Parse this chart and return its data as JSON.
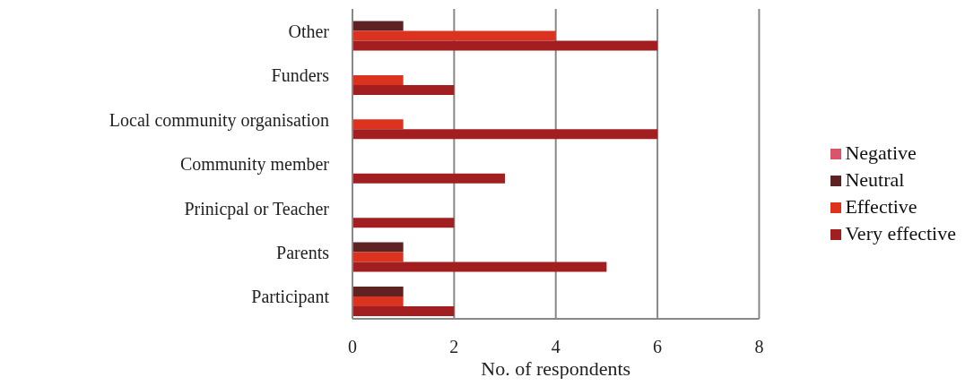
{
  "chart_data": {
    "type": "bar",
    "orientation": "horizontal",
    "xlabel": "No. of respondents",
    "categories": [
      "Other",
      "Funders",
      "Local community organisation",
      "Community member",
      "Prinicpal or Teacher",
      "Parents",
      "Participant"
    ],
    "series": [
      {
        "name": "Negative",
        "color": "#dc546c",
        "values": [
          0,
          0,
          0,
          0,
          0,
          0,
          0
        ]
      },
      {
        "name": "Neutral",
        "color": "#5e2222",
        "values": [
          1,
          0,
          0,
          0,
          0,
          1,
          1
        ]
      },
      {
        "name": "Effective",
        "color": "#dc3220",
        "values": [
          4,
          1,
          1,
          0,
          0,
          1,
          1
        ]
      },
      {
        "name": "Very effective",
        "color": "#a21e21",
        "values": [
          6,
          2,
          6,
          3,
          2,
          5,
          2
        ]
      }
    ],
    "xlim": [
      0,
      8
    ],
    "xticks": [
      0,
      2,
      4,
      6,
      8
    ],
    "grid": "x",
    "legend": "right"
  }
}
